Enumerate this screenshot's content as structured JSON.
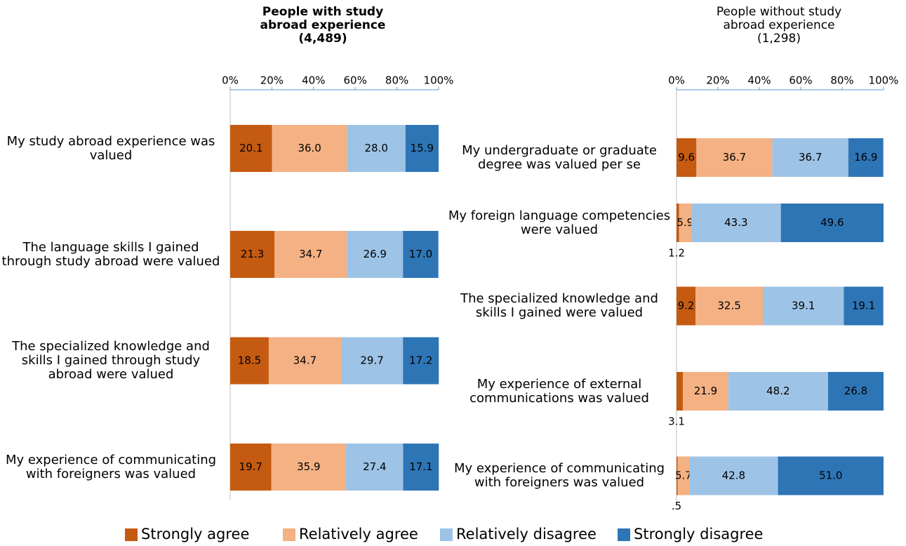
{
  "chart_data": [
    {
      "type": "bar",
      "orientation": "horizontal",
      "stacked": true,
      "title": "People with study abroad experience",
      "subtitle": "(4,489)",
      "categories": [
        "My study abroad experience was valued",
        "The language skills I gained through study abroad were valued",
        "The specialized knowledge and skills I gained through study abroad were valued",
        "My experience of communicating with foreigners was valued"
      ],
      "series": [
        {
          "name": "Strongly agree",
          "color": "#c55a11",
          "values": [
            20.1,
            21.3,
            18.5,
            19.7
          ],
          "value_labels": [
            "20.1",
            "21.3",
            "18.5",
            "19.7"
          ]
        },
        {
          "name": "Relatively agree",
          "color": "#f4b183",
          "values": [
            36.0,
            34.7,
            34.7,
            35.9
          ],
          "value_labels": [
            "36.0",
            "34.7",
            "34.7",
            "35.9"
          ]
        },
        {
          "name": "Relatively disagree",
          "color": "#9dc3e6",
          "values": [
            28.0,
            26.9,
            29.7,
            27.4
          ],
          "value_labels": [
            "28.0",
            "26.9",
            "29.7",
            "27.4"
          ]
        },
        {
          "name": "Strongly disagree",
          "color": "#2e75b6",
          "values": [
            15.9,
            17.0,
            17.2,
            17.1
          ],
          "value_labels": [
            "15.9",
            "17.0",
            "17.2",
            "17.1"
          ]
        }
      ],
      "xlim": [
        0,
        100
      ],
      "xticks": [
        {
          "value": 0,
          "label": "0%"
        },
        {
          "value": 20,
          "label": "20%"
        },
        {
          "value": 40,
          "label": "40%"
        },
        {
          "value": 60,
          "label": "60%"
        },
        {
          "value": 80,
          "label": "80%"
        },
        {
          "value": 100,
          "label": "100%"
        }
      ],
      "legend": "bottom"
    },
    {
      "type": "bar",
      "orientation": "horizontal",
      "stacked": true,
      "title": "People without study abroad experience",
      "subtitle": "(1,298)",
      "categories": [
        "My undergraduate or graduate degree was valued per se",
        "My foreign language competencies were valued",
        "The specialized knowledge and skills I gained were valued",
        "My experience of external communications was valued",
        "My experience of communicating with foreigners was valued"
      ],
      "series": [
        {
          "name": "Strongly agree",
          "color": "#c55a11",
          "values": [
            9.6,
            1.2,
            9.2,
            3.1,
            0.5
          ],
          "value_labels": [
            "9.6",
            "1.2",
            "9.2",
            "3.1",
            ".5"
          ]
        },
        {
          "name": "Relatively agree",
          "color": "#f4b183",
          "values": [
            36.7,
            5.9,
            32.5,
            21.9,
            5.7
          ],
          "value_labels": [
            "36.7",
            "5.9",
            "32.5",
            "21.9",
            "5.7"
          ]
        },
        {
          "name": "Relatively disagree",
          "color": "#9dc3e6",
          "values": [
            36.7,
            43.3,
            39.1,
            48.2,
            42.8
          ],
          "value_labels": [
            "36.7",
            "43.3",
            "39.1",
            "48.2",
            "42.8"
          ]
        },
        {
          "name": "Strongly disagree",
          "color": "#2e75b6",
          "values": [
            16.9,
            49.6,
            19.1,
            26.8,
            51.0
          ],
          "value_labels": [
            "16.9",
            "49.6",
            "19.1",
            "26.8",
            "51.0"
          ]
        }
      ],
      "xlim": [
        0,
        100
      ],
      "xticks": [
        {
          "value": 0,
          "label": "0%"
        },
        {
          "value": 20,
          "label": "20%"
        },
        {
          "value": 40,
          "label": "40%"
        },
        {
          "value": 60,
          "label": "60%"
        },
        {
          "value": 80,
          "label": "80%"
        },
        {
          "value": 100,
          "label": "100%"
        }
      ],
      "legend": "bottom"
    }
  ]
}
